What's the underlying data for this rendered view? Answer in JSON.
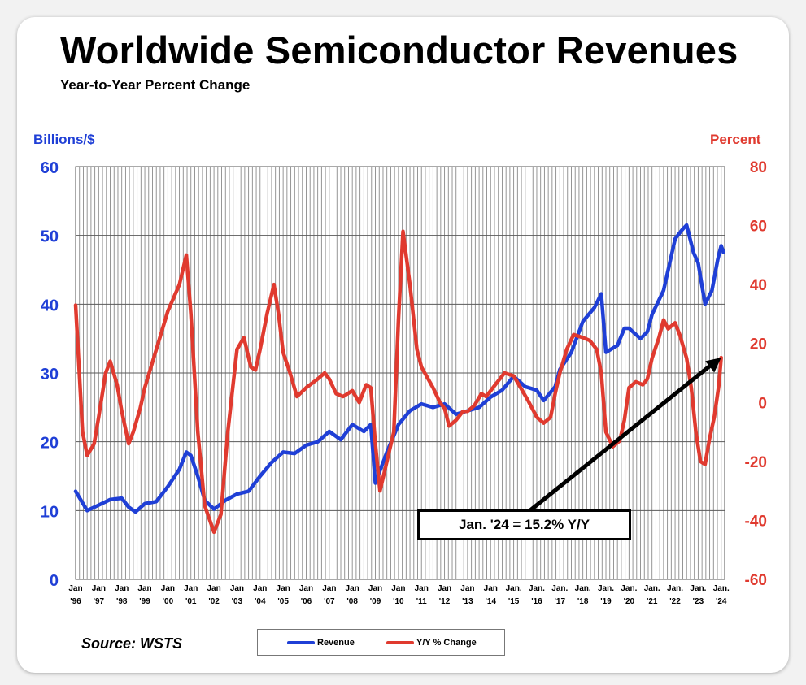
{
  "chart_data": {
    "type": "line",
    "title": "Worldwide Semiconductor Revenues",
    "subtitle": "Year-to-Year Percent Change",
    "y_left_label": "Billions/$",
    "y_right_label": "Percent",
    "y_left_range": [
      0,
      60
    ],
    "y_left_ticks": [
      "0",
      "10",
      "20",
      "30",
      "40",
      "50",
      "60"
    ],
    "y_right_range": [
      -60,
      80
    ],
    "y_right_ticks": [
      "-60",
      "-40",
      "-20",
      "0",
      "20",
      "40",
      "60",
      "80"
    ],
    "x_tick_labels": [
      [
        "Jan",
        "'96"
      ],
      [
        "Jan",
        "'97"
      ],
      [
        "Jan",
        "'98"
      ],
      [
        "Jan",
        "'99"
      ],
      [
        "Jan",
        "'00"
      ],
      [
        "Jan",
        "'01"
      ],
      [
        "Jan",
        "'02"
      ],
      [
        "Jan",
        "'03"
      ],
      [
        "Jan",
        "'04"
      ],
      [
        "Jan",
        "'05"
      ],
      [
        "Jan",
        "'06"
      ],
      [
        "Jan",
        "'07"
      ],
      [
        "Jan",
        "'08"
      ],
      [
        "Jan",
        "'09"
      ],
      [
        "Jan",
        "'10"
      ],
      [
        "Jan",
        "'11"
      ],
      [
        "Jan",
        "'12"
      ],
      [
        "Jan",
        "'13"
      ],
      [
        "Jan",
        "'14"
      ],
      [
        "Jan.",
        "'15"
      ],
      [
        "Jan.",
        "'16"
      ],
      [
        "Jan.",
        "'17"
      ],
      [
        "Jan.",
        "'18"
      ],
      [
        "Jan.",
        "'19"
      ],
      [
        "Jan.",
        "'20"
      ],
      [
        "Jan.",
        "'21"
      ],
      [
        "Jan.",
        "'22"
      ],
      [
        "Jan.",
        "'23"
      ],
      [
        "Jan.",
        "'24"
      ]
    ],
    "grid": "vertical lines every two months; horizontal lines at each left-axis tick",
    "legend_position": "bottom-center",
    "annotation": "Jan. '24 = 15.2% Y/Y",
    "source": "Source: WSTS",
    "series": [
      {
        "name": "Revenue",
        "axis": "left",
        "color": "#1f3fd6",
        "points": [
          [
            1996.0,
            12.8
          ],
          [
            1996.5,
            10.0
          ],
          [
            1997.0,
            10.8
          ],
          [
            1997.5,
            11.6
          ],
          [
            1998.0,
            11.8
          ],
          [
            1998.3,
            10.5
          ],
          [
            1998.6,
            9.8
          ],
          [
            1999.0,
            11.0
          ],
          [
            1999.5,
            11.3
          ],
          [
            2000.0,
            13.5
          ],
          [
            2000.5,
            16.0
          ],
          [
            2000.8,
            18.5
          ],
          [
            2001.0,
            18.0
          ],
          [
            2001.3,
            15.0
          ],
          [
            2001.6,
            11.5
          ],
          [
            2002.0,
            10.2
          ],
          [
            2002.5,
            11.5
          ],
          [
            2003.0,
            12.4
          ],
          [
            2003.5,
            12.8
          ],
          [
            2004.0,
            15.0
          ],
          [
            2004.5,
            17.0
          ],
          [
            2005.0,
            18.5
          ],
          [
            2005.5,
            18.3
          ],
          [
            2006.0,
            19.5
          ],
          [
            2006.5,
            20.0
          ],
          [
            2007.0,
            21.5
          ],
          [
            2007.5,
            20.3
          ],
          [
            2008.0,
            22.5
          ],
          [
            2008.5,
            21.5
          ],
          [
            2008.8,
            22.5
          ],
          [
            2009.0,
            14.0
          ],
          [
            2009.5,
            18.5
          ],
          [
            2010.0,
            22.5
          ],
          [
            2010.5,
            24.5
          ],
          [
            2011.0,
            25.5
          ],
          [
            2011.5,
            25.0
          ],
          [
            2012.0,
            25.5
          ],
          [
            2012.5,
            24.0
          ],
          [
            2013.0,
            24.5
          ],
          [
            2013.5,
            25.0
          ],
          [
            2014.0,
            26.5
          ],
          [
            2014.5,
            27.5
          ],
          [
            2015.0,
            29.5
          ],
          [
            2015.5,
            28.0
          ],
          [
            2016.0,
            27.5
          ],
          [
            2016.3,
            26.0
          ],
          [
            2016.8,
            28.0
          ],
          [
            2017.0,
            30.5
          ],
          [
            2017.5,
            33.0
          ],
          [
            2018.0,
            37.5
          ],
          [
            2018.5,
            39.5
          ],
          [
            2018.8,
            41.5
          ],
          [
            2019.0,
            33.0
          ],
          [
            2019.5,
            34.0
          ],
          [
            2019.8,
            36.5
          ],
          [
            2020.0,
            36.5
          ],
          [
            2020.5,
            35.0
          ],
          [
            2020.8,
            36.0
          ],
          [
            2021.0,
            38.5
          ],
          [
            2021.5,
            42.0
          ],
          [
            2022.0,
            49.5
          ],
          [
            2022.3,
            50.8
          ],
          [
            2022.5,
            51.5
          ],
          [
            2022.8,
            47.5
          ],
          [
            2023.0,
            46.0
          ],
          [
            2023.3,
            40.0
          ],
          [
            2023.6,
            42.0
          ],
          [
            2023.85,
            46.5
          ],
          [
            2024.0,
            48.5
          ],
          [
            2024.1,
            47.5
          ]
        ]
      },
      {
        "name": "Y/Y % Change",
        "axis": "right",
        "color": "#e03a2f",
        "points": [
          [
            1996.0,
            33.0
          ],
          [
            1996.3,
            -10.0
          ],
          [
            1996.5,
            -18.0
          ],
          [
            1996.8,
            -14.0
          ],
          [
            1997.0,
            -5.0
          ],
          [
            1997.3,
            10.0
          ],
          [
            1997.5,
            14.0
          ],
          [
            1997.8,
            6.0
          ],
          [
            1998.0,
            -3.0
          ],
          [
            1998.3,
            -14.0
          ],
          [
            1998.5,
            -10.0
          ],
          [
            1998.8,
            -2.0
          ],
          [
            1999.0,
            5.0
          ],
          [
            1999.5,
            18.0
          ],
          [
            2000.0,
            31.0
          ],
          [
            2000.5,
            40.0
          ],
          [
            2000.8,
            50.0
          ],
          [
            2001.0,
            30.0
          ],
          [
            2001.3,
            -10.0
          ],
          [
            2001.6,
            -35.0
          ],
          [
            2002.0,
            -44.0
          ],
          [
            2002.3,
            -38.0
          ],
          [
            2002.6,
            -10.0
          ],
          [
            2003.0,
            18.0
          ],
          [
            2003.3,
            22.0
          ],
          [
            2003.6,
            12.0
          ],
          [
            2003.8,
            11.0
          ],
          [
            2004.0,
            18.0
          ],
          [
            2004.3,
            30.0
          ],
          [
            2004.6,
            40.0
          ],
          [
            2004.8,
            30.0
          ],
          [
            2005.0,
            17.0
          ],
          [
            2005.3,
            10.0
          ],
          [
            2005.6,
            2.0
          ],
          [
            2006.0,
            5.0
          ],
          [
            2006.5,
            8.0
          ],
          [
            2006.8,
            10.0
          ],
          [
            2007.0,
            8.0
          ],
          [
            2007.3,
            3.0
          ],
          [
            2007.6,
            2.0
          ],
          [
            2008.0,
            4.0
          ],
          [
            2008.3,
            0.0
          ],
          [
            2008.6,
            6.0
          ],
          [
            2008.8,
            5.0
          ],
          [
            2009.0,
            -14.0
          ],
          [
            2009.2,
            -30.0
          ],
          [
            2009.5,
            -20.0
          ],
          [
            2009.8,
            -10.0
          ],
          [
            2010.0,
            28.0
          ],
          [
            2010.2,
            58.0
          ],
          [
            2010.5,
            40.0
          ],
          [
            2010.8,
            18.0
          ],
          [
            2011.0,
            12.0
          ],
          [
            2011.5,
            5.0
          ],
          [
            2011.8,
            0.0
          ],
          [
            2012.0,
            -2.0
          ],
          [
            2012.2,
            -8.0
          ],
          [
            2012.5,
            -6.0
          ],
          [
            2012.8,
            -3.0
          ],
          [
            2013.0,
            -3.0
          ],
          [
            2013.3,
            -1.0
          ],
          [
            2013.6,
            3.0
          ],
          [
            2013.8,
            2.0
          ],
          [
            2014.0,
            4.0
          ],
          [
            2014.3,
            7.0
          ],
          [
            2014.6,
            10.0
          ],
          [
            2015.0,
            9.0
          ],
          [
            2015.3,
            5.0
          ],
          [
            2015.6,
            1.0
          ],
          [
            2016.0,
            -5.0
          ],
          [
            2016.3,
            -7.0
          ],
          [
            2016.6,
            -5.0
          ],
          [
            2016.8,
            3.0
          ],
          [
            2017.0,
            10.0
          ],
          [
            2017.3,
            18.0
          ],
          [
            2017.6,
            23.0
          ],
          [
            2018.0,
            22.0
          ],
          [
            2018.3,
            21.0
          ],
          [
            2018.6,
            18.0
          ],
          [
            2018.8,
            10.0
          ],
          [
            2019.0,
            -10.0
          ],
          [
            2019.3,
            -15.0
          ],
          [
            2019.6,
            -13.0
          ],
          [
            2019.8,
            -6.0
          ],
          [
            2020.0,
            5.0
          ],
          [
            2020.3,
            7.0
          ],
          [
            2020.6,
            6.0
          ],
          [
            2020.8,
            8.0
          ],
          [
            2021.0,
            15.0
          ],
          [
            2021.3,
            22.0
          ],
          [
            2021.5,
            28.0
          ],
          [
            2021.7,
            25.0
          ],
          [
            2022.0,
            27.0
          ],
          [
            2022.2,
            23.0
          ],
          [
            2022.5,
            15.0
          ],
          [
            2022.7,
            5.0
          ],
          [
            2022.9,
            -10.0
          ],
          [
            2023.1,
            -20.0
          ],
          [
            2023.3,
            -21.0
          ],
          [
            2023.5,
            -12.0
          ],
          [
            2023.7,
            -5.0
          ],
          [
            2023.9,
            6.0
          ],
          [
            2024.0,
            15.2
          ]
        ]
      }
    ]
  },
  "legend": {
    "revenue_label": "Revenue",
    "yoy_label": "Y/Y % Change",
    "revenue_color": "#1f3fd6",
    "yoy_color": "#e03a2f"
  }
}
